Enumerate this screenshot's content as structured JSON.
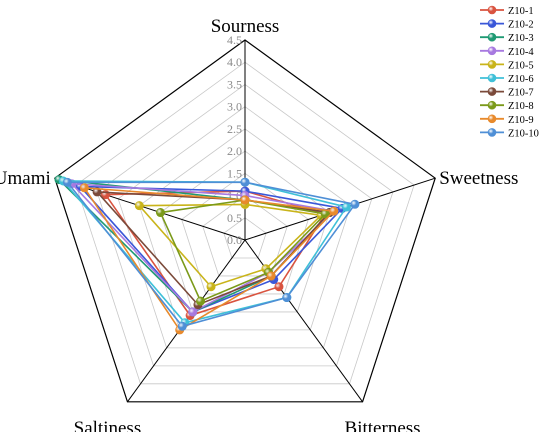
{
  "chart_data": {
    "type": "radar",
    "axes": [
      "Sourness",
      "Sweetness",
      "Bitterness",
      "Saltiness",
      "Umami"
    ],
    "scale": {
      "min": 0,
      "max": 4.5,
      "step": 0.5
    },
    "tick_labels": [
      "0.0",
      "0.5",
      "1.0",
      "1.5",
      "2.0",
      "2.5",
      "3.0",
      "3.5",
      "4.0",
      "4.5"
    ],
    "legend_position": "top-right",
    "series": [
      {
        "name": "Z10-1",
        "color": "#d9533f",
        "values": [
          1.1,
          1.9,
          1.3,
          2.1,
          3.3
        ]
      },
      {
        "name": "Z10-2",
        "color": "#3a57d8",
        "values": [
          1.1,
          2.3,
          1.1,
          2.0,
          3.9
        ]
      },
      {
        "name": "Z10-3",
        "color": "#1f9a73",
        "values": [
          0.9,
          2.0,
          1.0,
          2.0,
          4.4
        ]
      },
      {
        "name": "Z10-4",
        "color": "#a779e0",
        "values": [
          1.0,
          2.1,
          0.9,
          2.0,
          4.1
        ]
      },
      {
        "name": "Z10-5",
        "color": "#c9b41a",
        "values": [
          0.8,
          1.8,
          0.8,
          1.3,
          2.5
        ]
      },
      {
        "name": "Z10-6",
        "color": "#3fc0d8",
        "values": [
          1.3,
          2.4,
          1.6,
          2.3,
          4.3
        ]
      },
      {
        "name": "Z10-7",
        "color": "#7b4a3a",
        "values": [
          0.9,
          2.0,
          1.0,
          1.8,
          3.5
        ]
      },
      {
        "name": "Z10-8",
        "color": "#7b9a1a",
        "values": [
          0.9,
          1.9,
          0.9,
          1.7,
          2.0
        ]
      },
      {
        "name": "Z10-9",
        "color": "#e88a2c",
        "values": [
          0.9,
          2.1,
          1.0,
          2.5,
          3.8
        ]
      },
      {
        "name": "Z10-10",
        "color": "#4f8fd6",
        "values": [
          1.3,
          2.6,
          1.6,
          2.4,
          4.2
        ]
      }
    ]
  }
}
